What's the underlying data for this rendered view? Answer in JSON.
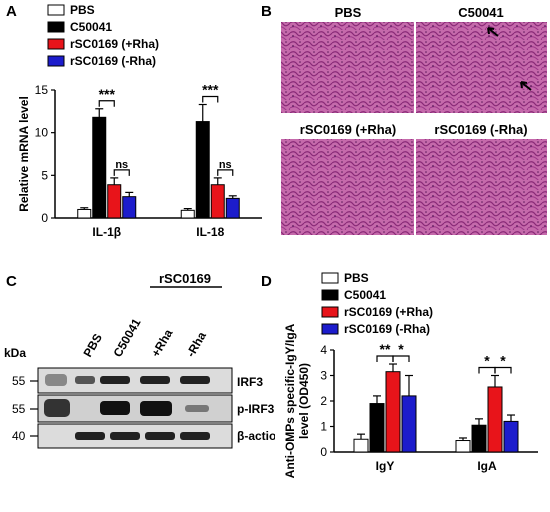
{
  "panels": {
    "a": "A",
    "b": "B",
    "c": "C",
    "d": "D"
  },
  "colors": {
    "pbs": "#ffffff",
    "c50041": "#000000",
    "rha_plus": "#e8141a",
    "rha_minus": "#1c1ccc",
    "tissue": "#b24a98"
  },
  "chart_data": [
    {
      "type": "bar",
      "panel": "A",
      "categories": [
        "IL-1β",
        "IL-18"
      ],
      "series": [
        {
          "name": "PBS",
          "values": [
            1.0,
            0.9
          ],
          "errors": [
            0.2,
            0.2
          ]
        },
        {
          "name": "C50041",
          "values": [
            11.8,
            11.3
          ],
          "errors": [
            1.0,
            2.0
          ]
        },
        {
          "name": "rSC0169 (+Rha)",
          "values": [
            3.9,
            3.9
          ],
          "errors": [
            0.8,
            0.8
          ]
        },
        {
          "name": "rSC0169 (-Rha)",
          "values": [
            2.5,
            2.3
          ],
          "errors": [
            0.5,
            0.3
          ]
        }
      ],
      "ylabel": "Relative mRNA level",
      "ylim": [
        0,
        15
      ],
      "yticks": [
        "0",
        "5",
        "10",
        "15"
      ],
      "significance": [
        {
          "category": "IL-1β",
          "between": [
            "C50041",
            "rSC0169 (+Rha)"
          ],
          "label": "***"
        },
        {
          "category": "IL-1β",
          "between": [
            "rSC0169 (+Rha)",
            "rSC0169 (-Rha)"
          ],
          "label": "ns"
        },
        {
          "category": "IL-18",
          "between": [
            "C50041",
            "rSC0169 (+Rha)"
          ],
          "label": "***"
        },
        {
          "category": "IL-18",
          "between": [
            "rSC0169 (+Rha)",
            "rSC0169 (-Rha)"
          ],
          "label": "ns"
        }
      ],
      "legend": "top"
    },
    {
      "type": "bar",
      "panel": "D",
      "categories": [
        "IgY",
        "IgA"
      ],
      "series": [
        {
          "name": "PBS",
          "values": [
            0.5,
            0.45
          ],
          "errors": [
            0.2,
            0.1
          ]
        },
        {
          "name": "C50041",
          "values": [
            1.9,
            1.05
          ],
          "errors": [
            0.3,
            0.25
          ]
        },
        {
          "name": "rSC0169 (+Rha)",
          "values": [
            3.15,
            2.55
          ],
          "errors": [
            0.3,
            0.45
          ]
        },
        {
          "name": "rSC0169 (-Rha)",
          "values": [
            2.2,
            1.2
          ],
          "errors": [
            0.8,
            0.25
          ]
        }
      ],
      "ylabel": "Anti-OMPs specific-IgY/IgA level (OD450)",
      "ylim": [
        0,
        4
      ],
      "yticks": [
        "0",
        "1",
        "2",
        "3",
        "4"
      ],
      "significance": [
        {
          "category": "IgY",
          "between": [
            "C50041",
            "rSC0169 (+Rha)"
          ],
          "label": "**"
        },
        {
          "category": "IgY",
          "between": [
            "rSC0169 (+Rha)",
            "rSC0169 (-Rha)"
          ],
          "label": "*"
        },
        {
          "category": "IgA",
          "between": [
            "C50041",
            "rSC0169 (+Rha)"
          ],
          "label": "*"
        },
        {
          "category": "IgA",
          "between": [
            "rSC0169 (+Rha)",
            "rSC0169 (-Rha)"
          ],
          "label": "*"
        }
      ],
      "legend": "top"
    }
  ],
  "histology": {
    "labels": [
      "PBS",
      "C50041",
      "rSC0169 (+Rha)",
      "rSC0169 (-Rha)"
    ]
  },
  "western": {
    "group_label": "rSC0169",
    "lanes": [
      "PBS",
      "C50041",
      "+Rha",
      "-Rha"
    ],
    "kda_label": "kDa",
    "rows": [
      {
        "marker": "55",
        "name": "IRF3"
      },
      {
        "marker": "55",
        "name": "p-IRF3"
      },
      {
        "marker": "40",
        "name": "β-action"
      }
    ]
  }
}
